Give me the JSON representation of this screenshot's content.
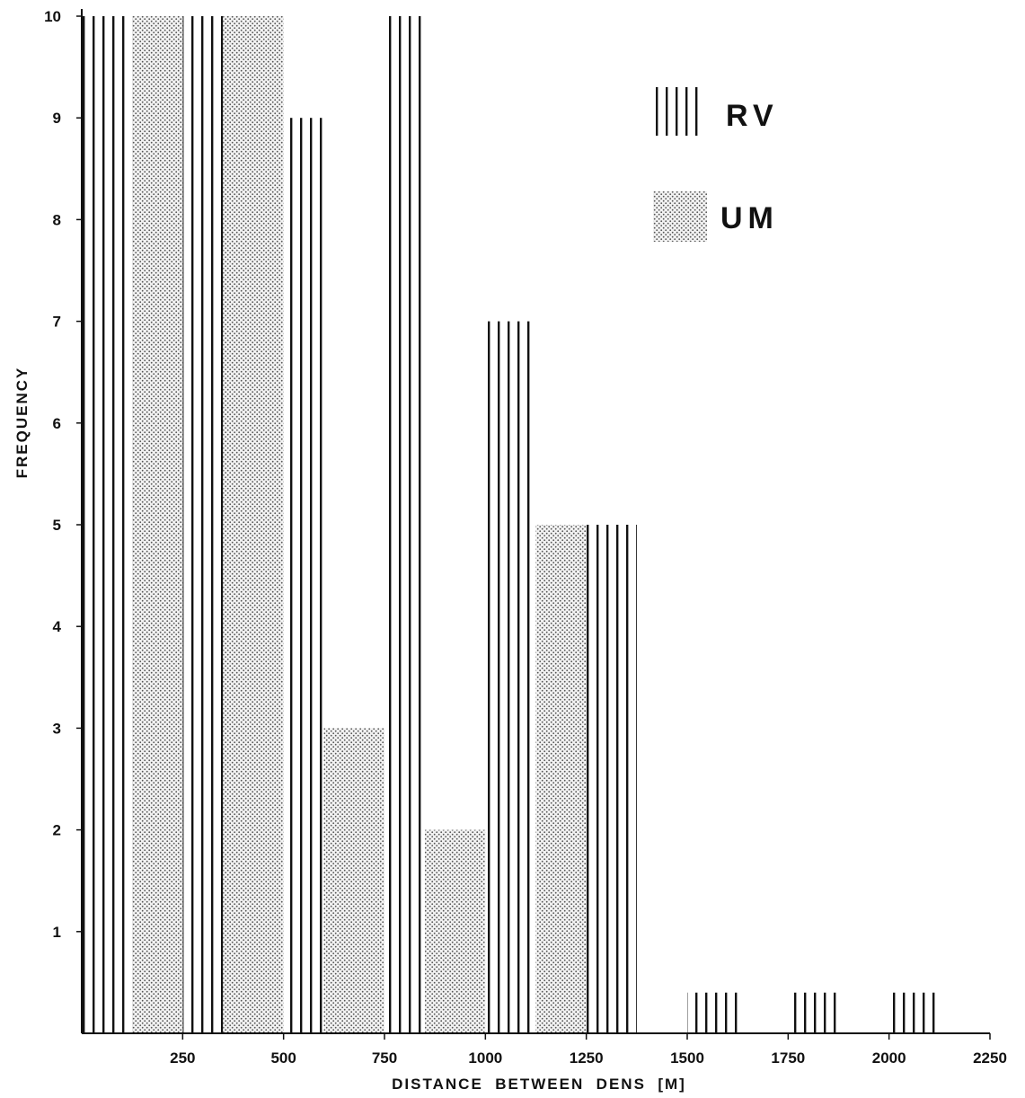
{
  "chart_data": {
    "type": "bar",
    "xlabel": "DISTANCE  BETWEEN  DENS  [M]",
    "ylabel": "FREQUENCY",
    "x_ticks": [
      "250",
      "500",
      "750",
      "1000",
      "1250",
      "1500",
      "1750",
      "2000",
      "2250"
    ],
    "y_ticks": [
      "1",
      "2",
      "3",
      "4",
      "5",
      "6",
      "7",
      "8",
      "9",
      "10"
    ],
    "ylim": [
      0,
      10
    ],
    "xlim": [
      0,
      2250
    ],
    "grid": false,
    "legend_position": "top-right",
    "series": [
      {
        "name": "RV",
        "pattern": "vertical-lines",
        "bars": [
          {
            "x_start": 0,
            "x_end": 125,
            "value": 10
          },
          {
            "x_start": 250,
            "x_end": 350,
            "value": 10
          },
          {
            "x_start": 500,
            "x_end": 600,
            "value": 9
          },
          {
            "x_start": 750,
            "x_end": 850,
            "value": 10
          },
          {
            "x_start": 1000,
            "x_end": 1125,
            "value": 7
          },
          {
            "x_start": 1250,
            "x_end": 1375,
            "value": 5
          },
          {
            "x_start": 1500,
            "x_end": 1625,
            "value": 0.4
          },
          {
            "x_start": 1750,
            "x_end": 1875,
            "value": 0.4
          },
          {
            "x_start": 2000,
            "x_end": 2125,
            "value": 0.4
          }
        ]
      },
      {
        "name": "UM",
        "pattern": "dots",
        "bars": [
          {
            "x_start": 125,
            "x_end": 250,
            "value": 10
          },
          {
            "x_start": 350,
            "x_end": 500,
            "value": 10
          },
          {
            "x_start": 600,
            "x_end": 750,
            "value": 3
          },
          {
            "x_start": 850,
            "x_end": 1000,
            "value": 2
          },
          {
            "x_start": 1125,
            "x_end": 1250,
            "value": 5
          }
        ]
      }
    ]
  }
}
